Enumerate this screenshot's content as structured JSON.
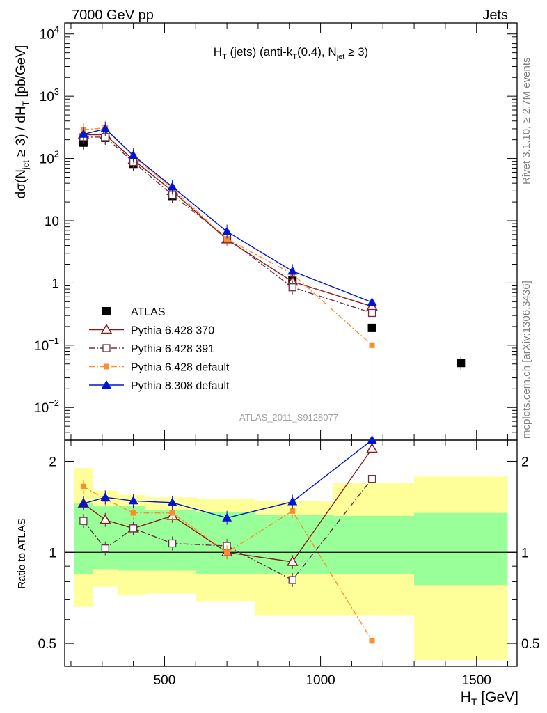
{
  "header": {
    "left": "7000 GeV pp",
    "right": "Jets"
  },
  "side_text": {
    "rivet": "Rivet 3.1.10, ≥ 2.7M events",
    "mcplots": "mcplots.cern.ch [arXiv:1306.3436]"
  },
  "chart_data": [
    {
      "type": "scatter",
      "panel": "main",
      "title": "H_T (jets) (anti-k_T(0.4), N_jet ≥ 3)",
      "watermark": "ATLAS_2011_S9128077",
      "ylabel": "dσ(N_jet ≥ 3) / dH_T [pb/GeV]",
      "yscale": "log",
      "ylim": [
        0.003,
        15000
      ],
      "xlim": [
        180,
        1630
      ],
      "y_ticks": [
        "10^-2",
        "10^-1",
        "1",
        "10",
        "10^2",
        "10^3",
        "10^4"
      ],
      "legend_position": "bottom-left",
      "series": [
        {
          "name": "ATLAS",
          "color": "#000000",
          "marker": "square-filled",
          "points": [
            [
              240,
              180
            ],
            [
              310,
              215
            ],
            [
              400,
              82
            ],
            [
              525,
              25
            ],
            [
              700,
              5.2
            ],
            [
              910,
              1.1
            ],
            [
              1165,
              0.19
            ],
            [
              1450,
              0.052
            ]
          ]
        },
        {
          "name": "Pythia 6.428 370",
          "color": "#8b1a1a",
          "marker": "triangle-open",
          "line": "solid",
          "points": [
            [
              240,
              240
            ],
            [
              310,
              240
            ],
            [
              400,
              95
            ],
            [
              525,
              30
            ],
            [
              700,
              5.0
            ],
            [
              910,
              1.05
            ],
            [
              1165,
              0.42
            ]
          ]
        },
        {
          "name": "Pythia 6.428 391",
          "color": "#6b3048",
          "marker": "square-open",
          "line": "dashdot",
          "points": [
            [
              240,
              220
            ],
            [
              310,
              220
            ],
            [
              400,
              88
            ],
            [
              525,
              26
            ],
            [
              700,
              5.3
            ],
            [
              910,
              0.85
            ],
            [
              1165,
              0.33
            ]
          ]
        },
        {
          "name": "Pythia 6.428 default",
          "color": "#ff8c2a",
          "marker": "square-filled-small",
          "line": "dashdot",
          "points": [
            [
              240,
              290
            ],
            [
              310,
              310
            ],
            [
              400,
              108
            ],
            [
              525,
              33
            ],
            [
              700,
              5.1
            ],
            [
              910,
              1.4
            ],
            [
              1165,
              0.1
            ]
          ]
        },
        {
          "name": "Pythia 8.308 default",
          "color": "#0015d4",
          "marker": "triangle-filled",
          "line": "solid",
          "points": [
            [
              240,
              245
            ],
            [
              310,
              300
            ],
            [
              400,
              112
            ],
            [
              525,
              35
            ],
            [
              700,
              6.7
            ],
            [
              910,
              1.55
            ],
            [
              1165,
              0.49
            ]
          ]
        }
      ]
    },
    {
      "type": "scatter",
      "panel": "ratio",
      "ylabel": "Ratio to ATLAS",
      "xlabel": "H_T [GeV]",
      "yscale": "log",
      "ylim": [
        0.42,
        2.35
      ],
      "xlim": [
        180,
        1630
      ],
      "y_ticks": [
        "0.5",
        "1",
        "2"
      ],
      "x_ticks": [
        "500",
        "1000",
        "1500"
      ],
      "bands": {
        "bin_edges": [
          210,
          270,
          350,
          440,
          600,
          790,
          1040,
          1300,
          1600
        ],
        "green": [
          [
            0.85,
            1.45
          ],
          [
            0.88,
            1.42
          ],
          [
            0.87,
            1.42
          ],
          [
            0.87,
            1.38
          ],
          [
            0.85,
            1.36
          ],
          [
            0.85,
            1.33
          ],
          [
            0.85,
            1.32
          ],
          [
            0.78,
            1.35
          ]
        ],
        "yellow": [
          [
            0.66,
            1.9
          ],
          [
            0.77,
            1.6
          ],
          [
            0.72,
            1.55
          ],
          [
            0.73,
            1.52
          ],
          [
            0.69,
            1.5
          ],
          [
            0.62,
            1.48
          ],
          [
            0.62,
            1.7
          ],
          [
            0.44,
            1.78
          ]
        ]
      },
      "series": [
        {
          "name": "Pythia 6.428 370",
          "color": "#8b1a1a",
          "marker": "triangle-open",
          "line": "solid",
          "points": [
            [
              240,
              1.45
            ],
            [
              310,
              1.28
            ],
            [
              400,
              1.2
            ],
            [
              525,
              1.32
            ],
            [
              700,
              1.0
            ],
            [
              910,
              0.93
            ],
            [
              1165,
              2.2
            ]
          ]
        },
        {
          "name": "Pythia 6.428 391",
          "color": "#6b3048",
          "marker": "square-open",
          "line": "dashdot",
          "points": [
            [
              240,
              1.27
            ],
            [
              310,
              1.03
            ],
            [
              400,
              1.2
            ],
            [
              525,
              1.07
            ],
            [
              700,
              1.05
            ],
            [
              910,
              0.81
            ],
            [
              1165,
              1.75
            ]
          ]
        },
        {
          "name": "Pythia 6.428 default",
          "color": "#ff8c2a",
          "marker": "square-filled-small",
          "line": "dashdot",
          "points": [
            [
              240,
              1.65
            ],
            [
              310,
              1.5
            ],
            [
              400,
              1.35
            ],
            [
              525,
              1.35
            ],
            [
              700,
              1.0
            ],
            [
              910,
              1.37
            ],
            [
              1165,
              0.51
            ]
          ]
        },
        {
          "name": "Pythia 8.308 default",
          "color": "#0015d4",
          "marker": "triangle-filled",
          "line": "solid",
          "points": [
            [
              240,
              1.45
            ],
            [
              310,
              1.52
            ],
            [
              400,
              1.48
            ],
            [
              525,
              1.46
            ],
            [
              700,
              1.3
            ],
            [
              910,
              1.47
            ],
            [
              1165,
              2.35
            ]
          ]
        }
      ]
    }
  ]
}
